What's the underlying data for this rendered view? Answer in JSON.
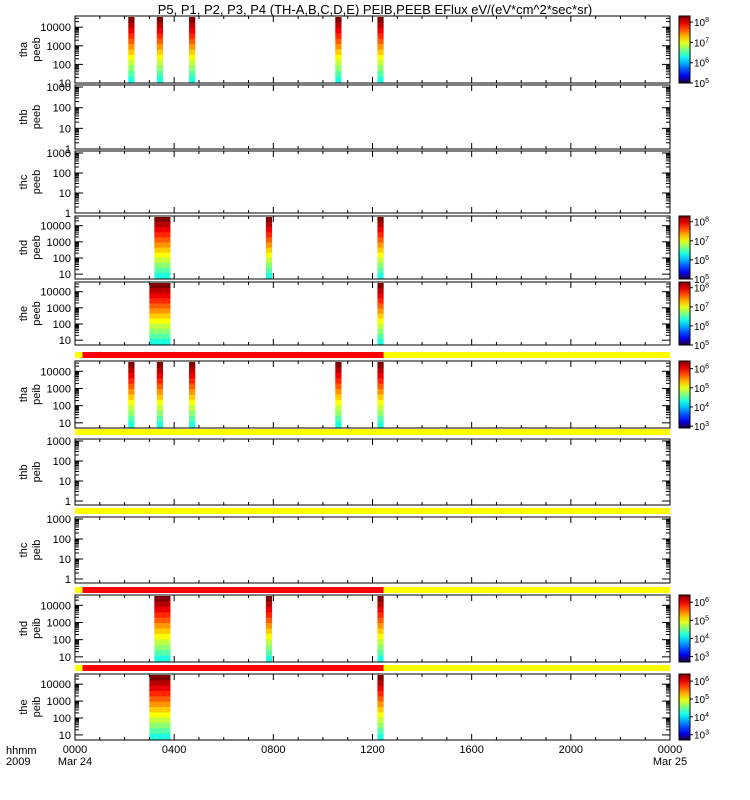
{
  "title": "P5, P1, P2, P3, P4 (TH-A,B,C,D,E) PEIB,PEEB EFlux eV/(eV*cm^2*sec*sr)",
  "x_axis": {
    "corner_label_1": "hhmm",
    "corner_label_2": "2009",
    "tick_labels": [
      "0000",
      "0400",
      "0800",
      "1200",
      "1600",
      "2000",
      "0000"
    ],
    "date_labels": [
      "Mar 24",
      "Mar 25"
    ]
  },
  "colors": {
    "bar_red": "#ff0000",
    "bar_yellow": "#ffff00"
  },
  "chart_data": {
    "type": "heatmap",
    "x_unit": "hours",
    "xlim": [
      0,
      24
    ],
    "panels": [
      {
        "id": "tha-peeb",
        "probe": "tha",
        "instrument": "peeb",
        "y_ticks": [
          "10",
          "100",
          "1000",
          "10000"
        ],
        "ylim_log10": [
          1,
          4.6
        ],
        "colorbar": {
          "labels": [
            "10^5",
            "10^6",
            "10^7",
            "10^8"
          ],
          "range_log10": [
            5,
            8.3
          ]
        },
        "intervals": [
          [
            2.15,
            2.4
          ],
          [
            3.3,
            3.55
          ],
          [
            4.6,
            4.85
          ],
          [
            10.5,
            10.75
          ],
          [
            12.2,
            12.45
          ]
        ],
        "status_bar": null
      },
      {
        "id": "thb-peeb",
        "probe": "thb",
        "instrument": "peeb",
        "y_ticks": [
          "1",
          "10",
          "100",
          "1000"
        ],
        "ylim_log10": [
          0,
          3.1
        ],
        "colorbar": null,
        "intervals": [],
        "status_bar": null
      },
      {
        "id": "thc-peeb",
        "probe": "thc",
        "instrument": "peeb",
        "y_ticks": [
          "1",
          "10",
          "100",
          "1000"
        ],
        "ylim_log10": [
          0,
          3.1
        ],
        "colorbar": null,
        "intervals": [],
        "status_bar": null
      },
      {
        "id": "thd-peeb",
        "probe": "thd",
        "instrument": "peeb",
        "y_ticks": [
          "10",
          "100",
          "1000",
          "10000"
        ],
        "ylim_log10": [
          0.7,
          4.6
        ],
        "colorbar": {
          "labels": [
            "10^5",
            "10^6",
            "10^7",
            "10^8"
          ],
          "range_log10": [
            5,
            8.3
          ]
        },
        "intervals": [
          [
            3.2,
            3.85
          ],
          [
            7.7,
            7.95
          ],
          [
            12.2,
            12.45
          ]
        ],
        "status_bar": null
      },
      {
        "id": "the-peeb",
        "probe": "the",
        "instrument": "peeb",
        "y_ticks": [
          "10",
          "100",
          "1000",
          "10000"
        ],
        "ylim_log10": [
          0.7,
          4.6
        ],
        "colorbar": {
          "labels": [
            "10^5",
            "10^6",
            "10^7",
            "10^8"
          ],
          "range_log10": [
            5,
            8.3
          ]
        },
        "intervals": [
          [
            3.0,
            3.85
          ],
          [
            12.2,
            12.45
          ]
        ],
        "status_bar": null
      },
      {
        "id": "tha-peib",
        "probe": "tha",
        "instrument": "peib",
        "y_ticks": [
          "10",
          "100",
          "1000",
          "10000"
        ],
        "ylim_log10": [
          0.7,
          4.6
        ],
        "colorbar": {
          "labels": [
            "10^3",
            "10^4",
            "10^5",
            "10^6"
          ],
          "range_log10": [
            2.9,
            6.4
          ]
        },
        "intervals": [
          [
            2.15,
            2.4
          ],
          [
            3.3,
            3.55
          ],
          [
            4.6,
            4.85
          ],
          [
            10.5,
            10.75
          ],
          [
            12.2,
            12.45
          ]
        ],
        "status_bar": [
          {
            "from": 0,
            "to": 0.3,
            "color": "yellow"
          },
          {
            "from": 0.3,
            "to": 12.45,
            "color": "red"
          },
          {
            "from": 12.45,
            "to": 24,
            "color": "yellow"
          }
        ]
      },
      {
        "id": "thb-peib",
        "probe": "thb",
        "instrument": "peib",
        "y_ticks": [
          "1",
          "10",
          "100",
          "1000"
        ],
        "ylim_log10": [
          -0.2,
          3.1
        ],
        "colorbar": null,
        "intervals": [],
        "status_bar": [
          {
            "from": 0,
            "to": 24,
            "color": "yellow"
          }
        ]
      },
      {
        "id": "thc-peib",
        "probe": "thc",
        "instrument": "peib",
        "y_ticks": [
          "1",
          "10",
          "100",
          "1000"
        ],
        "ylim_log10": [
          -0.2,
          3.1
        ],
        "colorbar": null,
        "intervals": [],
        "status_bar": [
          {
            "from": 0,
            "to": 24,
            "color": "yellow"
          }
        ]
      },
      {
        "id": "thd-peib",
        "probe": "thd",
        "instrument": "peib",
        "y_ticks": [
          "10",
          "100",
          "1000",
          "10000"
        ],
        "ylim_log10": [
          0.7,
          4.6
        ],
        "colorbar": {
          "labels": [
            "10^3",
            "10^4",
            "10^5",
            "10^6"
          ],
          "range_log10": [
            2.7,
            6.4
          ]
        },
        "intervals": [
          [
            3.2,
            3.85
          ],
          [
            7.7,
            7.95
          ],
          [
            12.2,
            12.45
          ]
        ],
        "status_bar": [
          {
            "from": 0,
            "to": 0.3,
            "color": "yellow"
          },
          {
            "from": 0.3,
            "to": 12.45,
            "color": "red"
          },
          {
            "from": 12.45,
            "to": 24,
            "color": "yellow"
          }
        ]
      },
      {
        "id": "the-peib",
        "probe": "the",
        "instrument": "peib",
        "y_ticks": [
          "10",
          "100",
          "1000",
          "10000"
        ],
        "ylim_log10": [
          0.7,
          4.6
        ],
        "colorbar": {
          "labels": [
            "10^3",
            "10^4",
            "10^5",
            "10^6"
          ],
          "range_log10": [
            2.7,
            6.4
          ]
        },
        "intervals": [
          [
            3.0,
            3.85
          ],
          [
            12.2,
            12.45
          ]
        ],
        "status_bar": [
          {
            "from": 0,
            "to": 0.3,
            "color": "yellow"
          },
          {
            "from": 0.3,
            "to": 12.45,
            "color": "red"
          },
          {
            "from": 12.45,
            "to": 24,
            "color": "yellow"
          }
        ]
      }
    ]
  }
}
